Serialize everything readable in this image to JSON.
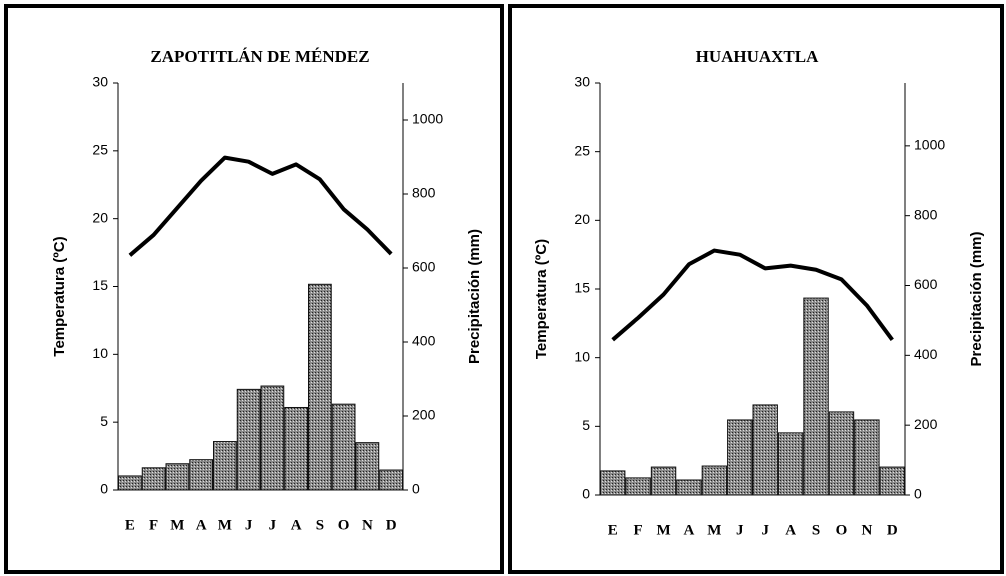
{
  "chart_data": [
    {
      "type": "combo",
      "title": "ZAPOTITLÁN DE MÉNDEZ",
      "ylabel": "Temperatura (ºC)",
      "y2label": "Precipitación (mm)",
      "categories": [
        "E",
        "F",
        "M",
        "A",
        "M",
        "J",
        "J",
        "A",
        "S",
        "O",
        "N",
        "D"
      ],
      "series": [
        {
          "type": "bar",
          "axis": "y2",
          "color": "#6e6e6e",
          "values": [
            38,
            60,
            71,
            82,
            131,
            272,
            281,
            223,
            556,
            232,
            128,
            54
          ]
        },
        {
          "type": "line",
          "color": "#000000",
          "values": [
            17.3,
            18.8,
            20.8,
            22.8,
            24.5,
            24.2,
            23.3,
            24.0,
            22.9,
            20.7,
            19.2,
            17.4
          ]
        }
      ],
      "ylim": [
        0,
        30
      ],
      "yticks": [
        0,
        5,
        10,
        15,
        20,
        25,
        30
      ],
      "y2lim": [
        0,
        1100
      ],
      "y2ticks": [
        0,
        200,
        400,
        600,
        800,
        1000
      ]
    },
    {
      "type": "combo",
      "title": "HUAHUAXTLA",
      "ylabel": "Temperatura (ºC)",
      "y2label": "Precipitación (mm)",
      "categories": [
        "E",
        "F",
        "M",
        "A",
        "M",
        "J",
        "J",
        "A",
        "S",
        "O",
        "N",
        "D"
      ],
      "series": [
        {
          "type": "bar",
          "axis": "y2",
          "color": "#6e6e6e",
          "values": [
            69,
            49,
            80,
            43,
            83,
            215,
            258,
            178,
            564,
            238,
            215,
            80
          ]
        },
        {
          "type": "line",
          "color": "#000000",
          "values": [
            11.3,
            12.9,
            14.6,
            16.8,
            17.8,
            17.5,
            16.5,
            16.7,
            16.4,
            15.7,
            13.8,
            11.3
          ]
        }
      ],
      "ylim": [
        0,
        30
      ],
      "yticks": [
        0,
        5,
        10,
        15,
        20,
        25,
        30
      ],
      "y2lim": [
        0,
        1180
      ],
      "y2ticks": [
        0,
        200,
        400,
        600,
        800,
        1000
      ]
    }
  ]
}
